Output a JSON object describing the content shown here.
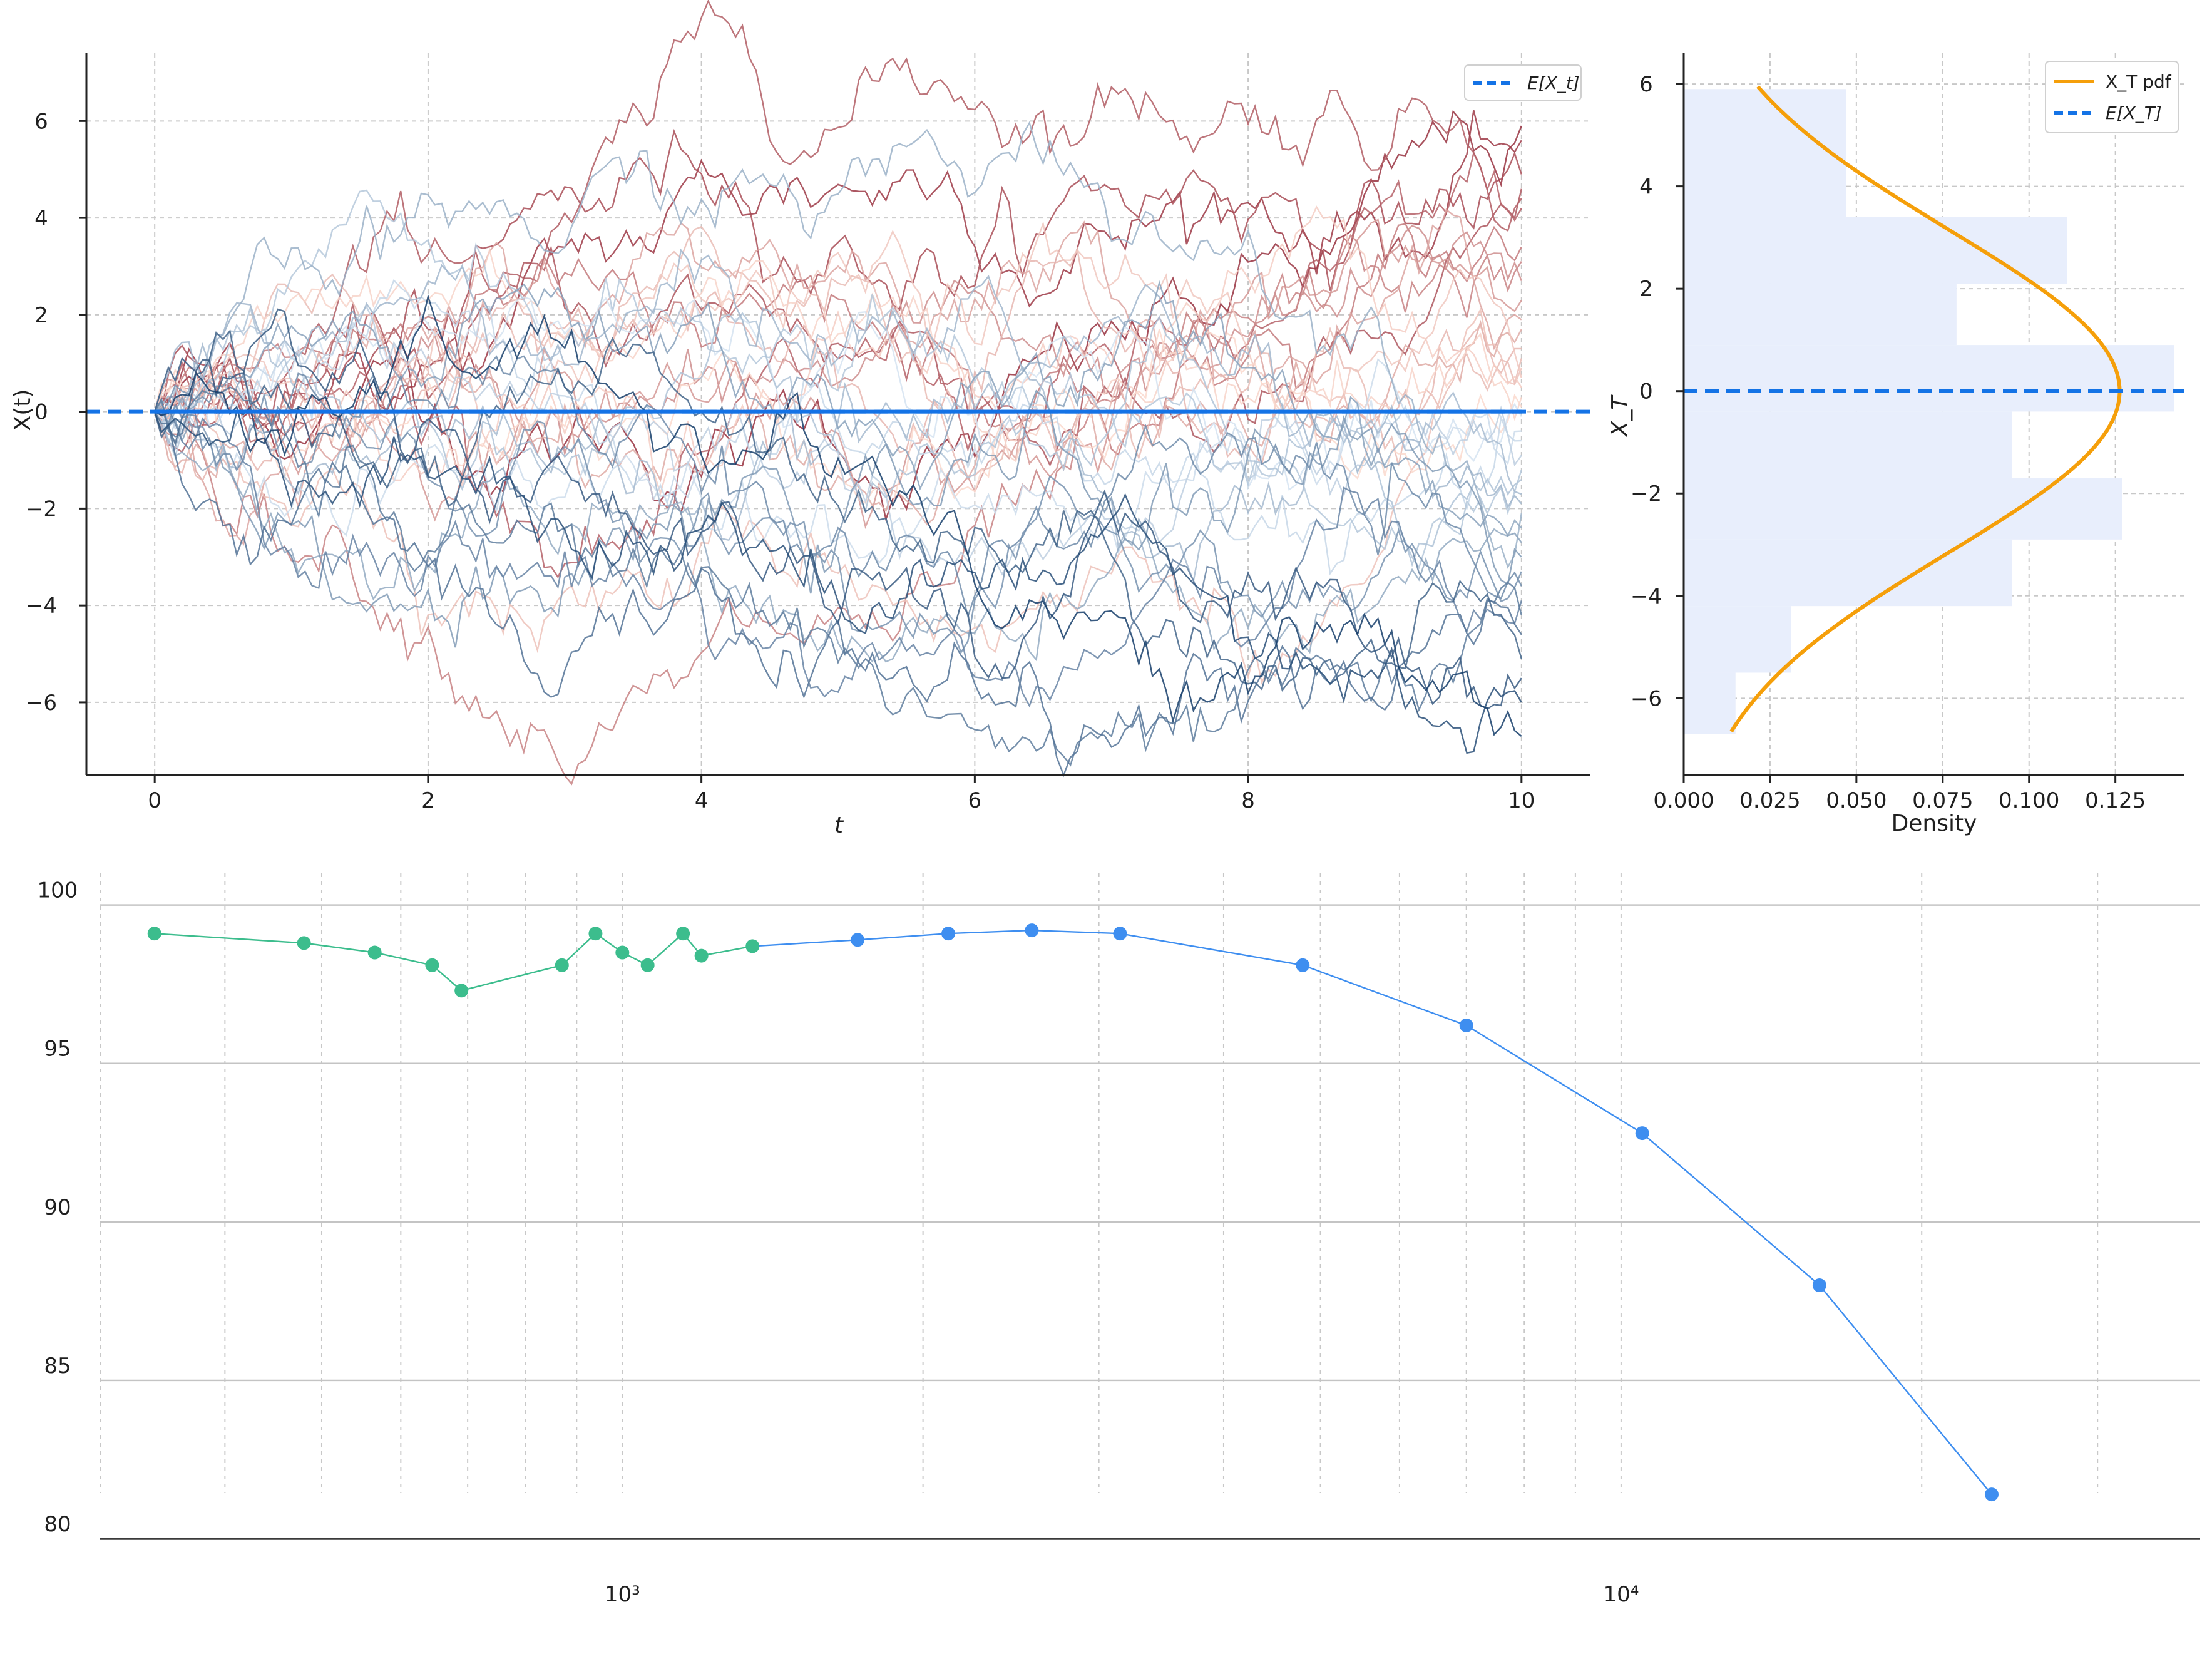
{
  "chart_data": [
    {
      "type": "line",
      "panel": "paths",
      "xlabel": "t",
      "ylabel": "X(t)",
      "xlim": [
        -0.5,
        10.5
      ],
      "ylim": [
        -7.5,
        7.4
      ],
      "xticks": [
        0,
        2,
        4,
        6,
        8,
        10
      ],
      "yticks": [
        -6,
        -4,
        -2,
        0,
        2,
        4,
        6
      ],
      "xtick_labels": [
        "0",
        "2",
        "4",
        "6",
        "8",
        "10"
      ],
      "ytick_labels": [
        "−6",
        "−4",
        "−2",
        "0",
        "2",
        "4",
        "6"
      ],
      "grid": true,
      "legend": {
        "position": "top-right",
        "entries": [
          {
            "label": "E[X_t]",
            "color": "#1473e6",
            "style": "dashed"
          }
        ]
      },
      "mean_line": {
        "x": [
          -0.5,
          10.5
        ],
        "y": [
          0,
          0
        ]
      },
      "series_note_values": {
        "n_paths": 60,
        "t_range": [
          0,
          10
        ],
        "final_values": [
          5.9,
          5.6,
          4.9,
          4.6,
          4.4,
          4.2,
          3.4,
          3.1,
          2.7,
          2.3,
          1.9,
          1.7,
          1.3,
          1.1,
          0.9,
          0.7,
          0.5,
          0.3,
          0.1,
          -0.1,
          -0.4,
          -0.6,
          -0.9,
          -1.2,
          -1.4,
          -1.7,
          -1.9,
          -2.1,
          -2.4,
          -2.7,
          -3.0,
          -3.3,
          -3.6,
          -3.9,
          -4.2,
          -4.6,
          -5.1,
          -5.5,
          -6.0,
          -6.7
        ]
      },
      "colors": {
        "positive": "#b2182b",
        "negative": "#2166ac",
        "mean": "#1473e6"
      }
    },
    {
      "type": "bar",
      "panel": "terminal_distribution",
      "orientation": "horizontal",
      "xlabel": "Density",
      "ylabel": "X_T",
      "xlim": [
        0,
        0.145
      ],
      "ylim": [
        -7.5,
        6.6
      ],
      "xticks": [
        0,
        0.025,
        0.05,
        0.075,
        0.1,
        0.125
      ],
      "xtick_labels": [
        "0.000",
        "0.025",
        "0.050",
        "0.075",
        "0.100",
        "0.125"
      ],
      "yticks": [
        -6,
        -4,
        -2,
        0,
        2,
        4,
        6
      ],
      "ytick_labels": [
        "−6",
        "−4",
        "−2",
        "0",
        "2",
        "4",
        "6"
      ],
      "grid": true,
      "bins": [
        {
          "y0": -6.7,
          "y1": -5.5,
          "density": 0.015
        },
        {
          "y0": -5.5,
          "y1": -4.2,
          "density": 0.031
        },
        {
          "y0": -4.2,
          "y1": -2.9,
          "density": 0.095
        },
        {
          "y0": -2.9,
          "y1": -1.7,
          "density": 0.127
        },
        {
          "y0": -1.7,
          "y1": -0.4,
          "density": 0.095
        },
        {
          "y0": -0.4,
          "y1": 0.9,
          "density": 0.142
        },
        {
          "y0": 0.9,
          "y1": 2.1,
          "density": 0.079
        },
        {
          "y0": 2.1,
          "y1": 3.4,
          "density": 0.111
        },
        {
          "y0": 3.4,
          "y1": 5.9,
          "density": 0.047
        }
      ],
      "pdf": {
        "mean": 0,
        "sd": 3.16,
        "y_range": [
          -6.65,
          5.95
        ]
      },
      "legend": {
        "position": "top-right",
        "entries": [
          {
            "label": "X_T pdf",
            "color": "#f59f0a",
            "style": "solid"
          },
          {
            "label": "E[X_T]",
            "color": "#1473e6",
            "style": "dashed"
          }
        ]
      },
      "colors": {
        "bars": "#e8eefc",
        "pdf": "#f59f0a",
        "mean": "#1473e6"
      }
    },
    {
      "type": "line",
      "panel": "log_x_series",
      "xscale": "log",
      "xlim": [
        300,
        38000
      ],
      "ylim": [
        80,
        101
      ],
      "xticks": [
        1000,
        10000
      ],
      "xtick_labels": [
        "10³",
        "10⁴"
      ],
      "yticks": [
        80,
        85,
        90,
        95,
        100
      ],
      "ytick_labels": [
        "80",
        "85",
        "90",
        "95",
        "100"
      ],
      "grid": true,
      "series": [
        {
          "color": "#3cbd8d",
          "x": [
            340,
            480,
            565,
            645,
            690,
            870,
            940,
            1000,
            1060,
            1150,
            1200,
            1350
          ],
          "y": [
            99.1,
            98.8,
            98.5,
            98.1,
            97.3,
            98.1,
            99.1,
            98.5,
            98.1,
            99.1,
            98.4,
            98.7
          ]
        },
        {
          "color": "#3e8ef0",
          "x": [
            1720,
            2120,
            2570,
            3150,
            4800,
            7000,
            10500,
            15800,
            23500
          ],
          "y": [
            98.9,
            99.1,
            99.2,
            99.1,
            98.1,
            96.2,
            92.8,
            88.0,
            81.4
          ]
        }
      ]
    }
  ]
}
